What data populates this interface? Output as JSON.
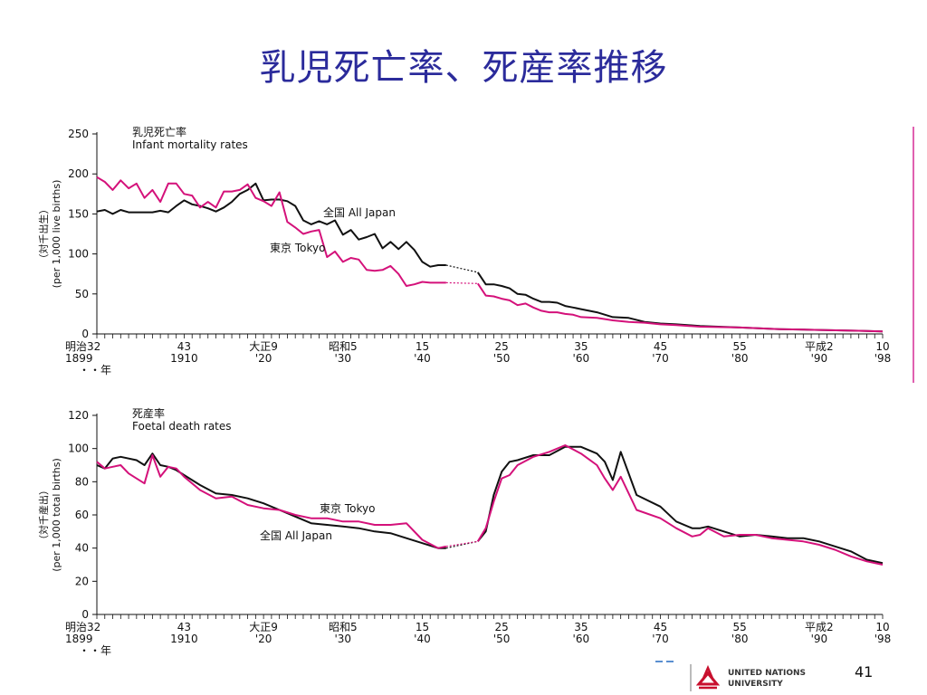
{
  "slide": {
    "title": "乳児死亡率、死産率推移",
    "page_number": "41",
    "logo_line1": "UNITED NATIONS",
    "logo_line2": "UNIVERSITY"
  },
  "colors": {
    "all_japan": "#111111",
    "tokyo": "#d4117a",
    "title": "#2b2b9b",
    "accent_bar": "#e060b0"
  },
  "chart_data": [
    {
      "type": "line",
      "title": "乳児死亡率",
      "subtitle": "Infant mortality rates",
      "ylabel_jp": "（対千出生）",
      "ylabel_en": "(per 1,000 live births)",
      "ylim": [
        0,
        250
      ],
      "yticks": [
        0,
        50,
        100,
        150,
        200,
        250
      ],
      "xlim": [
        1899,
        1998
      ],
      "x_tick_labels": [
        {
          "x": 1899,
          "top": "明治32",
          "bottom": "1899"
        },
        {
          "x": 1910,
          "top": "43",
          "bottom": "1910"
        },
        {
          "x": 1920,
          "top": "大正9",
          "bottom": "'20"
        },
        {
          "x": 1930,
          "top": "昭和5",
          "bottom": "'30"
        },
        {
          "x": 1940,
          "top": "15",
          "bottom": "'40"
        },
        {
          "x": 1950,
          "top": "25",
          "bottom": "'50"
        },
        {
          "x": 1960,
          "top": "35",
          "bottom": "'60"
        },
        {
          "x": 1970,
          "top": "45",
          "bottom": "'70"
        },
        {
          "x": 1980,
          "top": "55",
          "bottom": "'80"
        },
        {
          "x": 1990,
          "top": "平成2",
          "bottom": "'90"
        },
        {
          "x": 1998,
          "top": "10",
          "bottom": "'98"
        }
      ],
      "year_marker": "・・年",
      "gap": [
        1943,
        1947
      ],
      "series": [
        {
          "name": "全国 All Japan",
          "key": "all_japan",
          "x": [
            1899,
            1900,
            1901,
            1902,
            1903,
            1904,
            1905,
            1906,
            1907,
            1908,
            1909,
            1910,
            1911,
            1912,
            1913,
            1914,
            1915,
            1916,
            1917,
            1918,
            1919,
            1920,
            1921,
            1922,
            1923,
            1924,
            1925,
            1926,
            1927,
            1928,
            1929,
            1930,
            1931,
            1932,
            1933,
            1934,
            1935,
            1936,
            1937,
            1938,
            1939,
            1940,
            1941,
            1942,
            1943,
            1947,
            1948,
            1949,
            1950,
            1951,
            1952,
            1953,
            1954,
            1955,
            1956,
            1957,
            1958,
            1959,
            1960,
            1962,
            1964,
            1966,
            1968,
            1970,
            1972,
            1975,
            1980,
            1985,
            1990,
            1995,
            1998
          ],
          "y": [
            153,
            155,
            150,
            155,
            152,
            152,
            152,
            152,
            154,
            152,
            160,
            167,
            162,
            160,
            157,
            153,
            158,
            165,
            175,
            180,
            188,
            167,
            168,
            168,
            166,
            160,
            142,
            137,
            141,
            137,
            142,
            124,
            130,
            118,
            121,
            125,
            107,
            115,
            106,
            115,
            105,
            90,
            84,
            86,
            86,
            77,
            62,
            62,
            60,
            57,
            50,
            49,
            44,
            40,
            40,
            39,
            35,
            33,
            31,
            27,
            21,
            20,
            15,
            13,
            12,
            10,
            8,
            6,
            5,
            4,
            3
          ]
        },
        {
          "name": "東京 Tokyo",
          "key": "tokyo",
          "x": [
            1899,
            1900,
            1901,
            1902,
            1903,
            1904,
            1905,
            1906,
            1907,
            1908,
            1909,
            1910,
            1911,
            1912,
            1913,
            1914,
            1915,
            1916,
            1917,
            1918,
            1919,
            1920,
            1921,
            1922,
            1923,
            1924,
            1925,
            1926,
            1927,
            1928,
            1929,
            1930,
            1931,
            1932,
            1933,
            1934,
            1935,
            1936,
            1937,
            1938,
            1939,
            1940,
            1941,
            1942,
            1943,
            1947,
            1948,
            1949,
            1950,
            1951,
            1952,
            1953,
            1954,
            1955,
            1956,
            1957,
            1958,
            1959,
            1960,
            1962,
            1964,
            1966,
            1968,
            1970,
            1972,
            1975,
            1980,
            1985,
            1990,
            1995,
            1998
          ],
          "y": [
            196,
            190,
            180,
            192,
            182,
            188,
            170,
            180,
            165,
            188,
            188,
            175,
            173,
            158,
            165,
            158,
            178,
            178,
            180,
            187,
            170,
            166,
            160,
            177,
            140,
            133,
            125,
            128,
            130,
            96,
            103,
            90,
            95,
            93,
            80,
            79,
            80,
            85,
            75,
            60,
            62,
            65,
            64,
            64,
            64,
            63,
            48,
            47,
            44,
            42,
            36,
            38,
            33,
            29,
            27,
            27,
            25,
            24,
            21,
            20,
            17,
            15,
            14,
            12,
            11,
            9,
            8,
            6,
            5,
            4,
            3
          ]
        }
      ]
    },
    {
      "type": "line",
      "title": "死産率",
      "subtitle": "Foetal death rates",
      "ylabel_jp": "（対千産出）",
      "ylabel_en": "(per 1,000 total births)",
      "ylim": [
        0,
        120
      ],
      "yticks": [
        0,
        20,
        40,
        60,
        80,
        100,
        120
      ],
      "xlim": [
        1899,
        1998
      ],
      "x_tick_labels": [
        {
          "x": 1899,
          "top": "明治32",
          "bottom": "1899"
        },
        {
          "x": 1910,
          "top": "43",
          "bottom": "1910"
        },
        {
          "x": 1920,
          "top": "大正9",
          "bottom": "'20"
        },
        {
          "x": 1930,
          "top": "昭和5",
          "bottom": "'30"
        },
        {
          "x": 1940,
          "top": "15",
          "bottom": "'40"
        },
        {
          "x": 1950,
          "top": "25",
          "bottom": "'50"
        },
        {
          "x": 1960,
          "top": "35",
          "bottom": "'60"
        },
        {
          "x": 1970,
          "top": "45",
          "bottom": "'70"
        },
        {
          "x": 1980,
          "top": "55",
          "bottom": "'80"
        },
        {
          "x": 1990,
          "top": "平成2",
          "bottom": "'90"
        },
        {
          "x": 1998,
          "top": "10",
          "bottom": "'98"
        }
      ],
      "year_marker": "・・年",
      "gap": [
        1943,
        1947
      ],
      "series": [
        {
          "name": "全国 All Japan",
          "key": "all_japan",
          "x": [
            1899,
            1900,
            1901,
            1902,
            1904,
            1905,
            1906,
            1907,
            1908,
            1909,
            1910,
            1912,
            1914,
            1916,
            1918,
            1920,
            1922,
            1924,
            1926,
            1928,
            1930,
            1932,
            1934,
            1936,
            1938,
            1940,
            1942,
            1943,
            1947,
            1948,
            1949,
            1950,
            1951,
            1952,
            1954,
            1956,
            1958,
            1960,
            1962,
            1963,
            1964,
            1965,
            1967,
            1970,
            1972,
            1974,
            1975,
            1976,
            1978,
            1980,
            1982,
            1984,
            1986,
            1988,
            1990,
            1992,
            1994,
            1996,
            1998
          ],
          "y": [
            90,
            88,
            94,
            95,
            93,
            90,
            97,
            90,
            89,
            87,
            84,
            78,
            73,
            72,
            70,
            67,
            63,
            59,
            55,
            54,
            53,
            52,
            50,
            49,
            46,
            43,
            40,
            40,
            44,
            50,
            72,
            86,
            92,
            93,
            96,
            96,
            101,
            101,
            97,
            92,
            81,
            98,
            72,
            65,
            56,
            52,
            52,
            53,
            50,
            47,
            48,
            47,
            46,
            46,
            44,
            41,
            38,
            33,
            31
          ]
        },
        {
          "name": "東京 Tokyo",
          "key": "tokyo",
          "x": [
            1899,
            1900,
            1901,
            1902,
            1903,
            1904,
            1905,
            1906,
            1907,
            1908,
            1909,
            1910,
            1912,
            1914,
            1916,
            1918,
            1920,
            1922,
            1924,
            1926,
            1928,
            1930,
            1932,
            1934,
            1936,
            1938,
            1940,
            1942,
            1943,
            1947,
            1948,
            1949,
            1950,
            1951,
            1952,
            1954,
            1956,
            1958,
            1960,
            1962,
            1963,
            1964,
            1965,
            1967,
            1970,
            1972,
            1974,
            1975,
            1976,
            1978,
            1980,
            1982,
            1984,
            1986,
            1988,
            1990,
            1992,
            1994,
            1996,
            1998
          ],
          "y": [
            92,
            88,
            89,
            90,
            85,
            82,
            79,
            96,
            83,
            89,
            88,
            83,
            75,
            70,
            71,
            66,
            64,
            63,
            60,
            58,
            58,
            56,
            56,
            54,
            54,
            55,
            45,
            40,
            41,
            44,
            52,
            68,
            82,
            84,
            90,
            95,
            98,
            102,
            97,
            90,
            82,
            75,
            83,
            63,
            58,
            52,
            47,
            48,
            52,
            47,
            48,
            48,
            46,
            45,
            44,
            42,
            39,
            35,
            32,
            30
          ]
        }
      ]
    }
  ],
  "annotations": [
    {
      "chart": 0,
      "series": "all_japan",
      "text": "全国 All Japan"
    },
    {
      "chart": 0,
      "series": "tokyo",
      "text": "東京 Tokyo"
    },
    {
      "chart": 1,
      "series": "tokyo",
      "text": "東京 Tokyo"
    },
    {
      "chart": 1,
      "series": "all_japan",
      "text": "全国 All Japan"
    }
  ]
}
